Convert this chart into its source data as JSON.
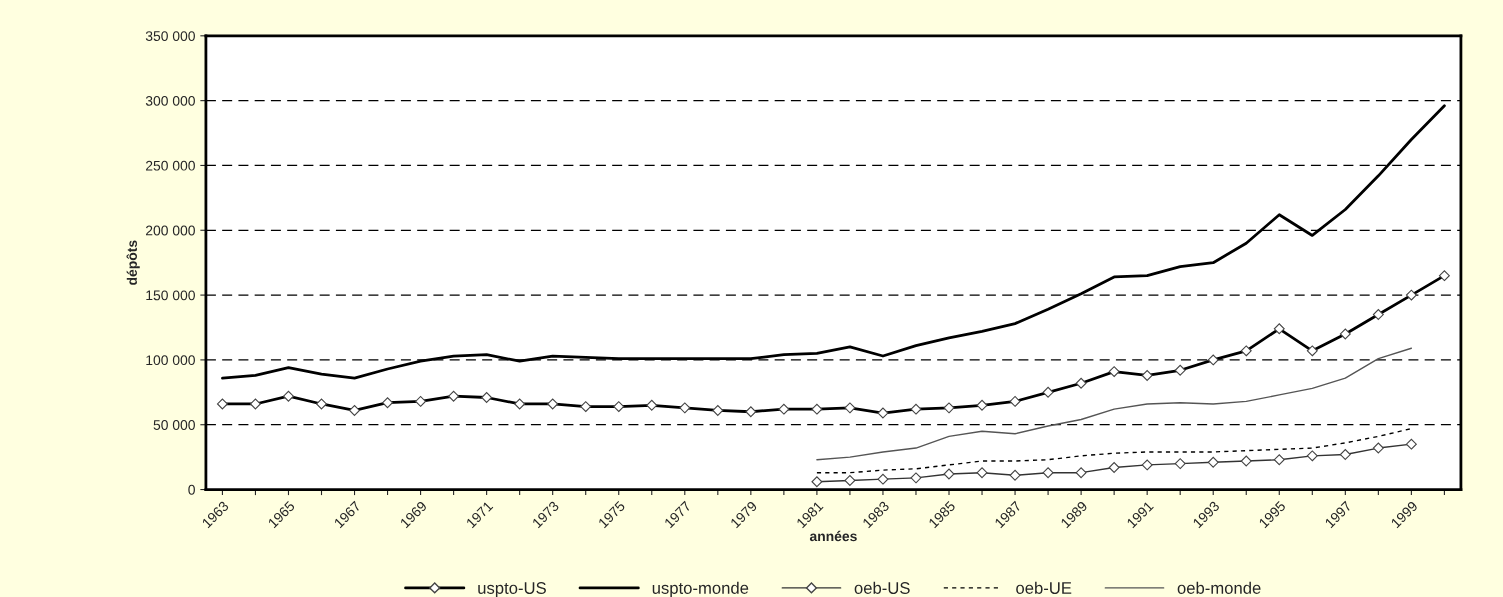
{
  "chart_data": {
    "type": "line",
    "xlabel": "années",
    "ylabel": "dépôts",
    "categories": [
      "1963",
      null,
      "1965",
      null,
      "1967",
      null,
      "1969",
      null,
      "1971",
      null,
      "1973",
      null,
      "1975",
      null,
      "1977",
      null,
      "1979",
      null,
      "1981",
      null,
      "1983",
      null,
      "1985",
      null,
      "1987",
      null,
      "1989",
      null,
      "1991",
      null,
      "1993",
      null,
      "1995",
      null,
      "1997",
      null,
      "1999",
      null
    ],
    "series": [
      {
        "name": "uspto-US",
        "color": "#000000",
        "marker": "diamond",
        "line_style": "solid",
        "values": [
          66000,
          66000,
          72000,
          66000,
          61000,
          67000,
          68000,
          72000,
          71000,
          66000,
          66000,
          64000,
          64000,
          65000,
          63000,
          61000,
          60000,
          62000,
          62000,
          63000,
          59000,
          62000,
          63000,
          65000,
          68000,
          75000,
          82000,
          91000,
          88000,
          92000,
          100000,
          107000,
          124000,
          107000,
          120000,
          135000,
          150000,
          165000
        ]
      },
      {
        "name": "uspto-monde",
        "color": "#000000",
        "marker": "none",
        "line_style": "solid",
        "values": [
          86000,
          88000,
          94000,
          89000,
          86000,
          93000,
          99000,
          103000,
          104000,
          99000,
          103000,
          102000,
          101000,
          101000,
          101000,
          101000,
          101000,
          104000,
          105000,
          110000,
          103000,
          111000,
          117000,
          122000,
          128000,
          139000,
          151000,
          164000,
          165000,
          172000,
          175000,
          190000,
          212000,
          196000,
          216000,
          242000,
          270000,
          296000
        ]
      },
      {
        "name": "oeb-US",
        "color": "#333333",
        "marker": "diamond",
        "line_style": "solid",
        "values": [
          null,
          null,
          null,
          null,
          null,
          null,
          null,
          null,
          null,
          null,
          null,
          null,
          null,
          null,
          null,
          null,
          null,
          null,
          6000,
          7000,
          8000,
          9000,
          12000,
          13000,
          11000,
          13000,
          13000,
          17000,
          19000,
          20000,
          21000,
          22000,
          23000,
          26000,
          27000,
          32000,
          35000,
          null
        ]
      },
      {
        "name": "oeb-UE",
        "color": "#000000",
        "marker": "none",
        "line_style": "dashed",
        "values": [
          null,
          null,
          null,
          null,
          null,
          null,
          null,
          null,
          null,
          null,
          null,
          null,
          null,
          null,
          null,
          null,
          null,
          null,
          13000,
          13000,
          15000,
          16000,
          19000,
          22000,
          22000,
          23000,
          26000,
          28000,
          29000,
          29000,
          29000,
          30000,
          31000,
          32000,
          36000,
          41000,
          47000,
          null
        ]
      },
      {
        "name": "oeb-monde",
        "color": "#555555",
        "marker": "none",
        "line_style": "solid",
        "values": [
          null,
          null,
          null,
          null,
          null,
          null,
          null,
          null,
          null,
          null,
          null,
          null,
          null,
          null,
          null,
          null,
          null,
          null,
          23000,
          25000,
          29000,
          32000,
          41000,
          45000,
          43000,
          49000,
          54000,
          62000,
          66000,
          67000,
          66000,
          68000,
          73000,
          78000,
          86000,
          101000,
          109000,
          null
        ]
      }
    ],
    "ylim": [
      0,
      350000
    ],
    "yticks": [
      {
        "value": 0,
        "label": "0"
      },
      {
        "value": 50000,
        "label": "50 000"
      },
      {
        "value": 100000,
        "label": "100 000"
      },
      {
        "value": 150000,
        "label": "150 000"
      },
      {
        "value": 200000,
        "label": "200 000"
      },
      {
        "value": 250000,
        "label": "250 000"
      },
      {
        "value": 300000,
        "label": "300 000"
      },
      {
        "value": 350000,
        "label": "350 000"
      }
    ],
    "grid": "y",
    "legend": "bottom"
  }
}
